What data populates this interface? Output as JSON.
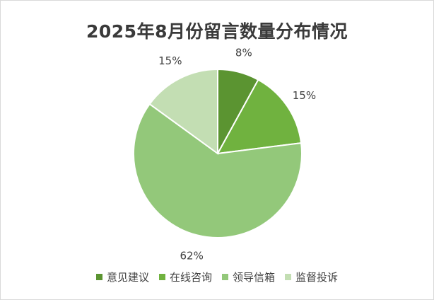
{
  "chart_data": {
    "type": "pie",
    "title": "2025年8月份留言数量分布情况",
    "slices": [
      {
        "name": "意见建议",
        "value": 8,
        "label": "8%",
        "color": "#5b9431"
      },
      {
        "name": "在线咨询",
        "value": 15,
        "label": "15%",
        "color": "#70b23f"
      },
      {
        "name": "领导信箱",
        "value": 62,
        "label": "62%",
        "color": "#93c87a"
      },
      {
        "name": "监督投诉",
        "value": 15,
        "label": "15%",
        "color": "#c3deb3"
      }
    ],
    "legend_position": "bottom",
    "data_labels": "outside"
  }
}
